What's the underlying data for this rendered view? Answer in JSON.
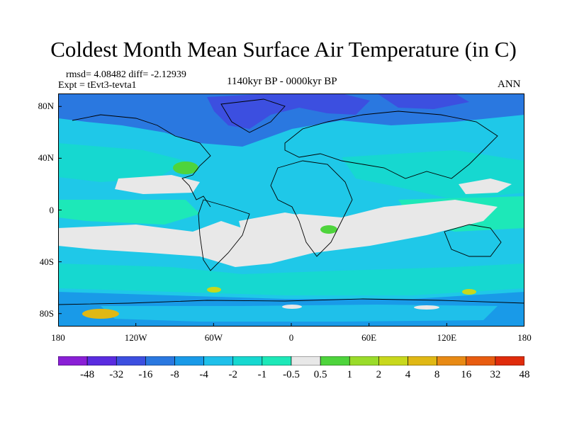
{
  "title": "Coldest Month Mean Surface Air Temperature (in C)",
  "stats_line": "rmsd= 4.08482 diff= -2.12939",
  "experiment_line": "Expt = tEvt3-tevta1",
  "period": "1140kyr BP - 0000kyr BP",
  "season": "ANN",
  "map": {
    "projection": "cylindrical equidistant",
    "x_range": [
      -180,
      180
    ],
    "y_range": [
      -90,
      90
    ],
    "x_ticks": [
      {
        "value": -180,
        "label": "180"
      },
      {
        "value": -120,
        "label": "120W"
      },
      {
        "value": -60,
        "label": "60W"
      },
      {
        "value": 0,
        "label": "0"
      },
      {
        "value": 60,
        "label": "60E"
      },
      {
        "value": 120,
        "label": "120E"
      },
      {
        "value": 180,
        "label": "180"
      }
    ],
    "y_ticks": [
      {
        "value": 80,
        "label": "80N"
      },
      {
        "value": 40,
        "label": "40N"
      },
      {
        "value": 0,
        "label": "0"
      },
      {
        "value": -40,
        "label": "40S"
      },
      {
        "value": -80,
        "label": "80S"
      }
    ],
    "background_color": "#1fc8e8"
  },
  "colorbar": {
    "levels": [
      "-48",
      "-32",
      "-16",
      "-8",
      "-4",
      "-2",
      "-1",
      "-0.5",
      "0.5",
      "1",
      "2",
      "4",
      "8",
      "16",
      "32",
      "48"
    ],
    "colors": [
      "#8a1fd6",
      "#5a2ce0",
      "#3c4fe0",
      "#2a78e0",
      "#199ae8",
      "#1fc0ea",
      "#16d8d0",
      "#1de8b8",
      "#e8e8e8",
      "#4ed43c",
      "#9adc2a",
      "#c8d81c",
      "#e0b814",
      "#e88a14",
      "#e85c10",
      "#e02c0c"
    ]
  }
}
